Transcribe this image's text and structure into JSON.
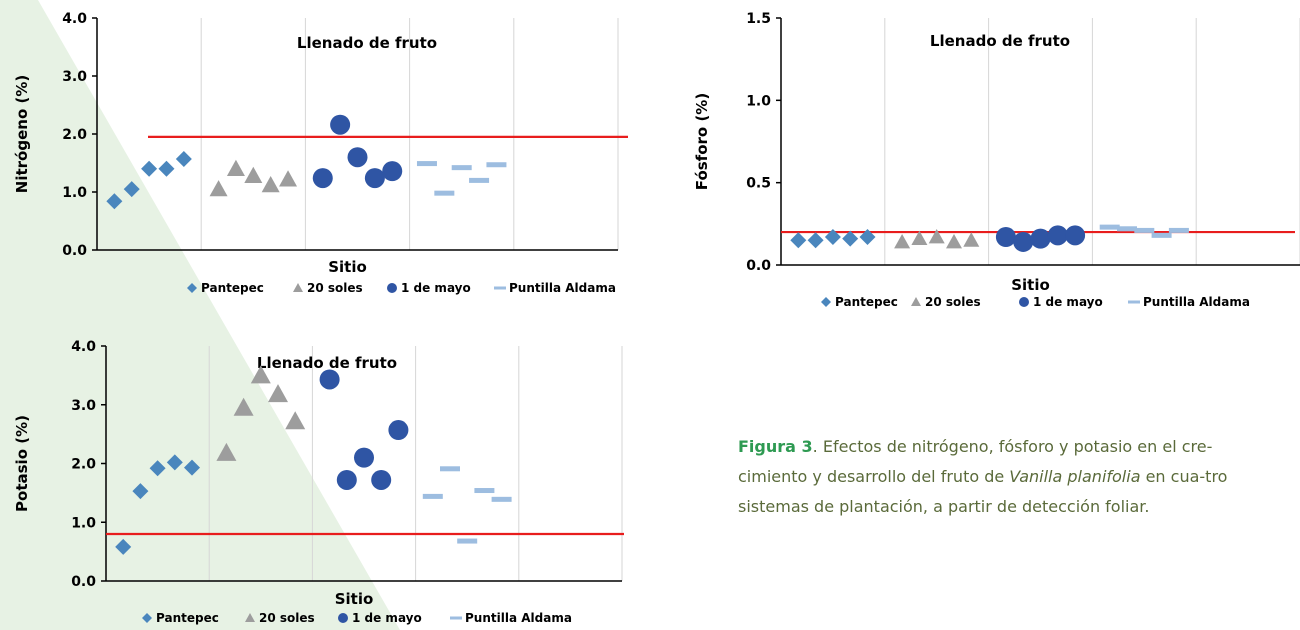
{
  "colors": {
    "pantepec": "#4a86bd",
    "soles": "#9d9d9d",
    "mayo": "#2f55a4",
    "aldama": "#9dbde0",
    "threshold": "#e81d1d",
    "grid": "#d6d6d6",
    "background_shape": "#e7f2e4"
  },
  "chart_data": [
    {
      "type": "scatter",
      "title": "Llenado de fruto",
      "ylabel": "Nitrógeno (%)",
      "xlabel": "Sitio",
      "ylim": [
        0,
        4
      ],
      "yticks": [
        "0.0",
        "1.0",
        "2.0",
        "3.0",
        "4.0"
      ],
      "grid": "vertical",
      "legend": "bottom",
      "threshold": 1.95,
      "series": [
        {
          "name": "Pantepec",
          "marker": "diamond",
          "values": [
            0.84,
            1.05,
            1.4,
            1.4,
            1.57
          ]
        },
        {
          "name": "20 soles",
          "marker": "triangle",
          "values": [
            1.05,
            1.4,
            1.28,
            1.12,
            1.22
          ]
        },
        {
          "name": "1 de mayo",
          "marker": "circle",
          "values": [
            1.24,
            2.16,
            1.6,
            1.24,
            1.36
          ]
        },
        {
          "name": "Puntilla Aldama",
          "marker": "dash",
          "values": [
            1.49,
            0.98,
            1.42,
            1.2,
            1.47
          ]
        }
      ]
    },
    {
      "type": "scatter",
      "title": "Llenado de fruto",
      "ylabel": "Fósforo (%)",
      "xlabel": "Sitio",
      "ylim": [
        0,
        1.5
      ],
      "yticks": [
        "0.0",
        "0.5",
        "1.0",
        "1.5"
      ],
      "grid": "vertical",
      "legend": "bottom",
      "threshold": 0.2,
      "series": [
        {
          "name": "Pantepec",
          "marker": "diamond",
          "values": [
            0.15,
            0.15,
            0.17,
            0.16,
            0.17
          ]
        },
        {
          "name": "20 soles",
          "marker": "triangle",
          "values": [
            0.14,
            0.16,
            0.17,
            0.14,
            0.15
          ]
        },
        {
          "name": "1 de mayo",
          "marker": "circle",
          "values": [
            0.17,
            0.14,
            0.16,
            0.18,
            0.18
          ]
        },
        {
          "name": "Puntilla Aldama",
          "marker": "dash",
          "values": [
            0.23,
            0.22,
            0.21,
            0.18,
            0.21
          ]
        }
      ]
    },
    {
      "type": "scatter",
      "title": "Llenado de fruto",
      "ylabel": "Potasio (%)",
      "xlabel": "Sitio",
      "ylim": [
        0,
        4
      ],
      "yticks": [
        "0.0",
        "1.0",
        "2.0",
        "3.0",
        "4.0"
      ],
      "grid": "vertical",
      "legend": "bottom",
      "threshold": 0.8,
      "series": [
        {
          "name": "Pantepec",
          "marker": "diamond",
          "values": [
            0.58,
            1.53,
            1.92,
            2.02,
            1.93
          ]
        },
        {
          "name": "20 soles",
          "marker": "triangle",
          "values": [
            2.18,
            2.95,
            3.5,
            3.18,
            2.72
          ]
        },
        {
          "name": "1 de mayo",
          "marker": "circle",
          "values": [
            3.43,
            1.72,
            2.1,
            1.72,
            2.57
          ]
        },
        {
          "name": "Puntilla Aldama",
          "marker": "dash",
          "values": [
            1.44,
            1.91,
            0.68,
            1.54,
            1.39
          ]
        }
      ]
    }
  ],
  "caption": {
    "fig_label": "Figura 3",
    "text_1": ". Efectos de nitrógeno, fósforo y potasio en el cre-cimiento y desarrollo del fruto de ",
    "species": "Vanilla planifolia",
    "text_2": " en cua-tro sistemas de plantación, a partir de detección foliar."
  }
}
